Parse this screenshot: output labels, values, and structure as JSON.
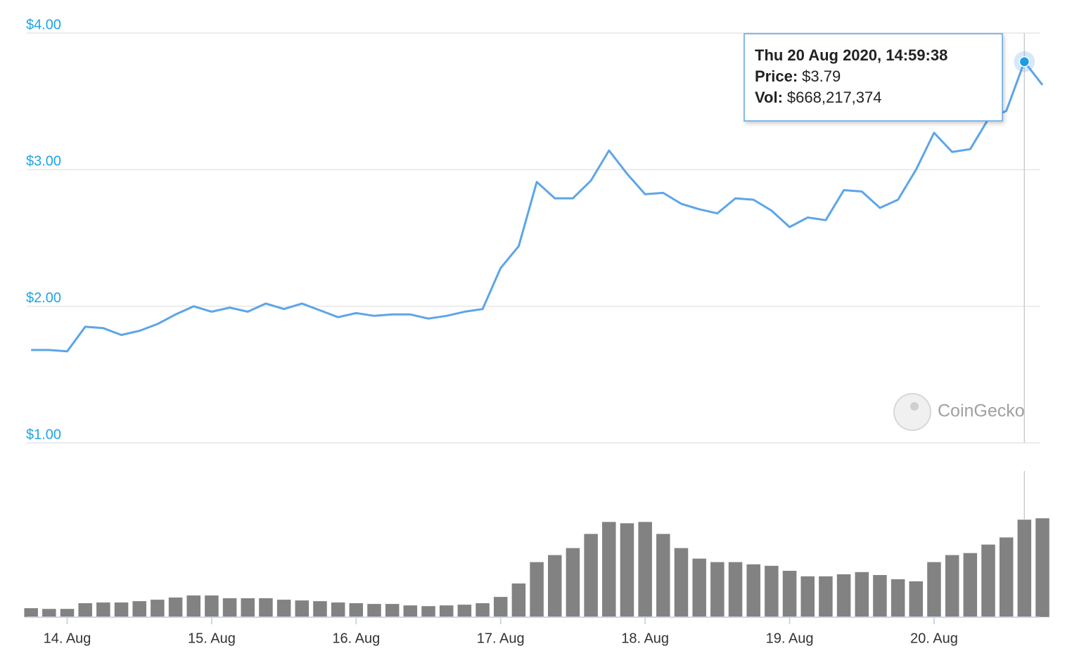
{
  "chart_data": [
    {
      "type": "line",
      "color": "#5da5e8",
      "tick_color": "#1ea5e3",
      "grid": true,
      "xlim": [
        13.72,
        20.75
      ],
      "ylim": [
        1,
        4
      ],
      "yticks": [
        {
          "value": 1,
          "label": "$1.00"
        },
        {
          "value": 2,
          "label": "$2.00"
        },
        {
          "value": 3,
          "label": "$3.00"
        },
        {
          "value": 4,
          "label": "$4.00"
        }
      ],
      "x": [
        13.75,
        13.875,
        14,
        14.125,
        14.25,
        14.375,
        14.5,
        14.625,
        14.75,
        14.875,
        15,
        15.125,
        15.25,
        15.375,
        15.5,
        15.625,
        15.75,
        15.875,
        16,
        16.125,
        16.25,
        16.375,
        16.5,
        16.625,
        16.75,
        16.875,
        17,
        17.125,
        17.25,
        17.375,
        17.5,
        17.625,
        17.75,
        17.875,
        18,
        18.125,
        18.25,
        18.375,
        18.5,
        18.625,
        18.75,
        18.875,
        19,
        19.125,
        19.25,
        19.375,
        19.5,
        19.625,
        19.75,
        19.875,
        20,
        20.125,
        20.25,
        20.375,
        20.5,
        20.625,
        20.75
      ],
      "values": [
        1.68,
        1.68,
        1.67,
        1.85,
        1.84,
        1.79,
        1.82,
        1.87,
        1.94,
        2.0,
        1.96,
        1.99,
        1.96,
        2.02,
        1.98,
        2.02,
        1.97,
        1.92,
        1.95,
        1.93,
        1.94,
        1.94,
        1.91,
        1.93,
        1.96,
        1.98,
        2.28,
        2.44,
        2.91,
        2.79,
        2.79,
        2.92,
        3.14,
        2.97,
        2.82,
        2.83,
        2.75,
        2.71,
        2.68,
        2.79,
        2.78,
        2.7,
        2.58,
        2.65,
        2.63,
        2.85,
        2.84,
        2.72,
        2.78,
        3.0,
        3.27,
        3.13,
        3.15,
        3.37,
        3.43,
        3.79,
        3.62
      ],
      "tooltip": {
        "index": 55,
        "date": "Thu 20 Aug 2020, 14:59:38",
        "price_label": "Price:",
        "price": "$3.79",
        "vol_label": "Vol:",
        "vol": "$668,217,374"
      },
      "watermark": "CoinGecko"
    },
    {
      "type": "bar",
      "color": "#828282",
      "xlim": [
        13.72,
        20.75
      ],
      "ylim": [
        0,
        1000000000
      ],
      "xticks": [
        {
          "value": 14,
          "label": "14. Aug"
        },
        {
          "value": 15,
          "label": "15. Aug"
        },
        {
          "value": 16,
          "label": "16. Aug"
        },
        {
          "value": 17,
          "label": "17. Aug"
        },
        {
          "value": 18,
          "label": "18. Aug"
        },
        {
          "value": 19,
          "label": "19. Aug"
        },
        {
          "value": 20,
          "label": "20. Aug"
        }
      ],
      "x": [
        13.75,
        13.875,
        14,
        14.125,
        14.25,
        14.375,
        14.5,
        14.625,
        14.75,
        14.875,
        15,
        15.125,
        15.25,
        15.375,
        15.5,
        15.625,
        15.75,
        15.875,
        16,
        16.125,
        16.25,
        16.375,
        16.5,
        16.625,
        16.75,
        16.875,
        17,
        17.125,
        17.25,
        17.375,
        17.5,
        17.625,
        17.75,
        17.875,
        18,
        18.125,
        18.25,
        18.375,
        18.5,
        18.625,
        18.75,
        18.875,
        19,
        19.125,
        19.25,
        19.375,
        19.5,
        19.625,
        19.75,
        19.875,
        20,
        20.125,
        20.25,
        20.375,
        20.5,
        20.625,
        20.75
      ],
      "values": [
        63000000,
        58000000,
        58000000,
        97000000,
        102000000,
        102000000,
        111000000,
        121000000,
        136000000,
        150000000,
        150000000,
        131000000,
        131000000,
        131000000,
        121000000,
        116000000,
        111000000,
        102000000,
        97000000,
        92000000,
        92000000,
        82000000,
        77000000,
        82000000,
        87000000,
        97000000,
        140000000,
        232000000,
        378000000,
        426000000,
        474000000,
        571000000,
        653000000,
        644000000,
        653000000,
        571000000,
        474000000,
        402000000,
        378000000,
        378000000,
        363000000,
        353000000,
        319000000,
        281000000,
        281000000,
        295000000,
        310000000,
        290000000,
        261000000,
        247000000,
        378000000,
        426000000,
        440000000,
        498000000,
        547000000,
        668217374,
        678000000
      ]
    }
  ]
}
